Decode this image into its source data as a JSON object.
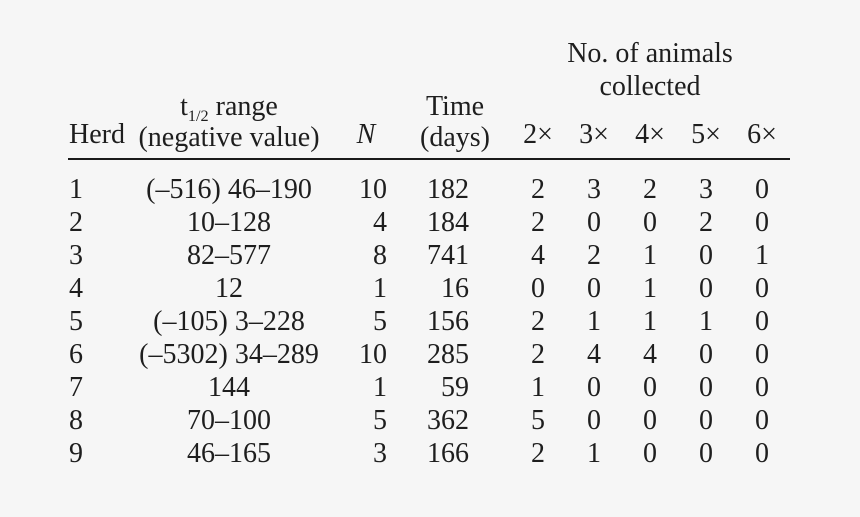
{
  "page": {
    "background": "#f6f6f6",
    "text_color": "#1e1e1e",
    "rule_color": "#1a1a1a"
  },
  "table": {
    "spanner": {
      "line1": "No. of animals",
      "line2": "collected"
    },
    "headers": {
      "herd": "Herd",
      "range": {
        "base": "t",
        "sub": "1/2",
        "rest": " range",
        "line2": "(negative value)"
      },
      "n": "N",
      "time": {
        "line1": "Time",
        "line2": "(days)"
      },
      "collected": [
        "2×",
        "3×",
        "4×",
        "5×",
        "6×"
      ]
    },
    "rows": [
      {
        "herd": "1",
        "range": "(–516) 46–190",
        "n": "10",
        "time": "182",
        "c2": "2",
        "c3": "3",
        "c4": "2",
        "c5": "3",
        "c6": "0"
      },
      {
        "herd": "2",
        "range": "10–128",
        "n": "4",
        "time": "184",
        "c2": "2",
        "c3": "0",
        "c4": "0",
        "c5": "2",
        "c6": "0"
      },
      {
        "herd": "3",
        "range": "82–577",
        "n": "8",
        "time": "741",
        "c2": "4",
        "c3": "2",
        "c4": "1",
        "c5": "0",
        "c6": "1"
      },
      {
        "herd": "4",
        "range": "12",
        "n": "1",
        "time": "16",
        "c2": "0",
        "c3": "0",
        "c4": "1",
        "c5": "0",
        "c6": "0"
      },
      {
        "herd": "5",
        "range": "(–105) 3–228",
        "n": "5",
        "time": "156",
        "c2": "2",
        "c3": "1",
        "c4": "1",
        "c5": "1",
        "c6": "0"
      },
      {
        "herd": "6",
        "range": "(–5302) 34–289",
        "n": "10",
        "time": "285",
        "c2": "2",
        "c3": "4",
        "c4": "4",
        "c5": "0",
        "c6": "0"
      },
      {
        "herd": "7",
        "range": "144",
        "n": "1",
        "time": "59",
        "c2": "1",
        "c3": "0",
        "c4": "0",
        "c5": "0",
        "c6": "0"
      },
      {
        "herd": "8",
        "range": "70–100",
        "n": "5",
        "time": "362",
        "c2": "5",
        "c3": "0",
        "c4": "0",
        "c5": "0",
        "c6": "0"
      },
      {
        "herd": "9",
        "range": "46–165",
        "n": "3",
        "time": "166",
        "c2": "2",
        "c3": "1",
        "c4": "0",
        "c5": "0",
        "c6": "0"
      }
    ]
  }
}
